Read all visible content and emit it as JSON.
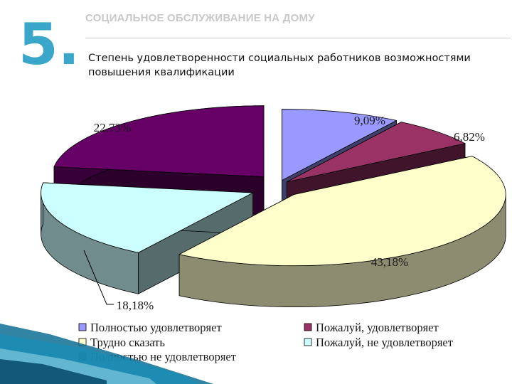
{
  "slide": {
    "number": "5.",
    "section_title": "СОЦИАЛЬНОЕ ОБСЛУЖИВАНИЕ НА ДОМУ",
    "subtitle": "Степень удовлетворенности социальных работников возможностями повышения квалификации"
  },
  "chart_data": {
    "type": "pie",
    "title": "",
    "style": "3d-exploded",
    "legend_position": "bottom",
    "slices": [
      {
        "name": "Полностью удовлетворяет",
        "value": 9.09,
        "label": "9,09%",
        "color": "#9999ff"
      },
      {
        "name": "Пожалуй, удовлетворяет",
        "value": 6.82,
        "label": "6,82%",
        "color": "#993366"
      },
      {
        "name": "Трудно сказать",
        "value": 43.18,
        "label": "43,18%",
        "color": "#ffffcc"
      },
      {
        "name": "Пожалуй, не удовлетворяет",
        "value": 18.18,
        "label": "18,18%",
        "color": "#ccffff"
      },
      {
        "name": "Полностью не удовлетворяет",
        "value": 22.73,
        "label": "22,73%",
        "color": "#660066"
      }
    ]
  }
}
